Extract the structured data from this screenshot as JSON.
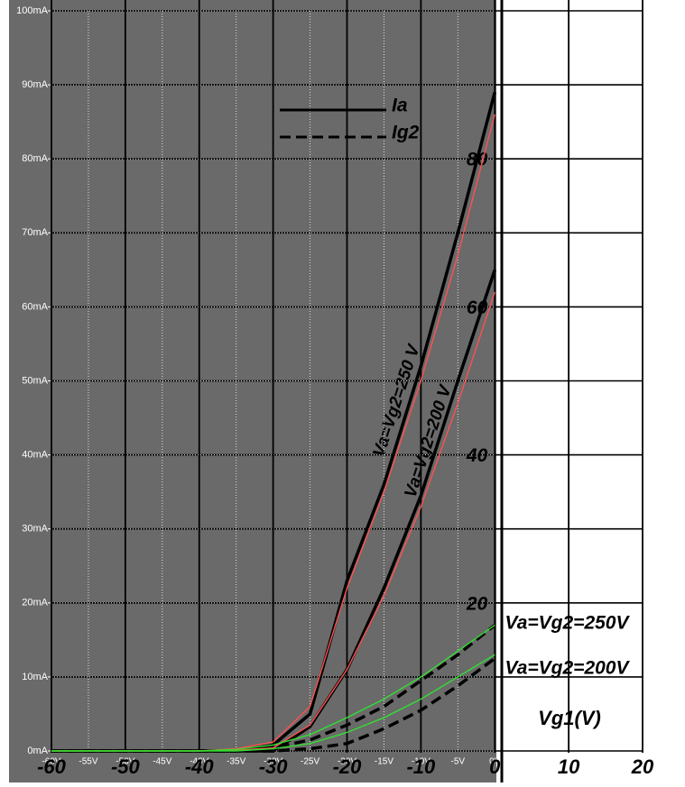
{
  "chart_data": {
    "type": "line",
    "xlim": [
      -60,
      20
    ],
    "ylim": [
      0,
      100
    ],
    "xticks": [
      {
        "value": -60,
        "label": "-60V"
      },
      {
        "value": -55,
        "label": "-55V"
      },
      {
        "value": -50,
        "label": "-50V"
      },
      {
        "value": -45,
        "label": "-45V"
      },
      {
        "value": -40,
        "label": "-40V"
      },
      {
        "value": -35,
        "label": "-35V"
      },
      {
        "value": -30,
        "label": "-30V"
      },
      {
        "value": -25,
        "label": "-25V"
      },
      {
        "value": -20,
        "label": "-20V"
      },
      {
        "value": -15,
        "label": "-15V"
      },
      {
        "value": -10,
        "label": "-10V"
      },
      {
        "value": -5,
        "label": "-5V"
      },
      {
        "value": 0,
        "label": "0V"
      }
    ],
    "yticks": [
      {
        "value": 0,
        "label": "0mA"
      },
      {
        "value": 10,
        "label": "10mA"
      },
      {
        "value": 20,
        "label": "20mA"
      },
      {
        "value": 30,
        "label": "30mA"
      },
      {
        "value": 40,
        "label": "40mA"
      },
      {
        "value": 50,
        "label": "50mA"
      },
      {
        "value": 60,
        "label": "60mA"
      },
      {
        "value": 70,
        "label": "70mA"
      },
      {
        "value": 80,
        "label": "80mA"
      },
      {
        "value": 90,
        "label": "90mA"
      },
      {
        "value": 100,
        "label": "100mA"
      }
    ],
    "scan_xticks": [
      -60,
      -50,
      -40,
      -30,
      -20,
      -10,
      0,
      10,
      20
    ],
    "scan_yticks": [
      20,
      40,
      60,
      80
    ],
    "x_axis_label": "Vg1(V)",
    "grid": true,
    "legend": [
      {
        "label": "Ia",
        "dash": false
      },
      {
        "label": "Ig2",
        "dash": true
      }
    ],
    "x": [
      -60,
      -55,
      -50,
      -45,
      -40,
      -35,
      -30,
      -25,
      -20,
      -15,
      -10,
      -5,
      0
    ],
    "series": [
      {
        "label": "Va=Vg2=250 V",
        "color": "#000000",
        "dash": false,
        "values": [
          0,
          0,
          0,
          0,
          0,
          0,
          0.8,
          5,
          23,
          36,
          52,
          70,
          89
        ]
      },
      {
        "label": "Va=Vg2=200 V",
        "color": "#000000",
        "dash": false,
        "values": [
          0,
          0,
          0,
          0,
          0,
          0,
          0,
          3.3,
          11,
          22,
          34.5,
          50,
          65
        ]
      },
      {
        "label": "Va=Vg2=250V",
        "color": "#000000",
        "dash": true,
        "values": [
          0,
          0,
          0,
          0,
          0,
          0,
          0.4,
          1.5,
          3.5,
          6,
          9.5,
          13,
          17
        ]
      },
      {
        "label": "Va=Vg2=200V",
        "color": "#000000",
        "dash": true,
        "values": [
          0,
          0,
          0,
          0,
          0,
          0,
          0,
          0.3,
          1,
          3,
          5.5,
          8.8,
          12.5
        ]
      },
      {
        "color": "#ff5050",
        "dash": false,
        "values": [
          0,
          0,
          0,
          0,
          0,
          0.3,
          1.2,
          6,
          22,
          35,
          50,
          67,
          86
        ]
      },
      {
        "color": "#ff5050",
        "dash": false,
        "values": [
          0,
          0,
          0,
          0,
          0,
          0.1,
          0.4,
          3.5,
          11,
          21,
          33,
          47,
          62
        ]
      },
      {
        "color": "#33dd33",
        "dash": false,
        "values": [
          0,
          0,
          0,
          0,
          0,
          0.2,
          0.8,
          2.2,
          4.5,
          7,
          10,
          13.5,
          17
        ]
      },
      {
        "color": "#33dd33",
        "dash": false,
        "values": [
          0,
          0,
          0,
          0,
          0,
          0,
          0.3,
          1,
          2.5,
          4.5,
          7,
          10,
          13
        ]
      }
    ]
  }
}
